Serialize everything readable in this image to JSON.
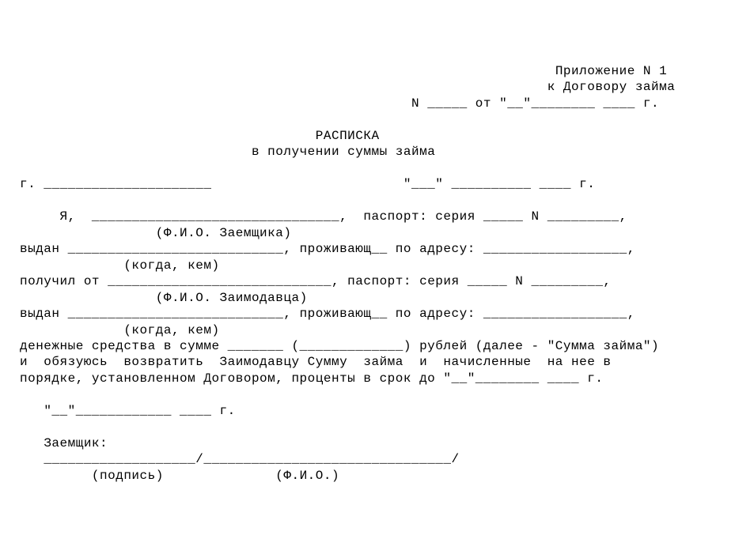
{
  "header": {
    "appendix": "Приложение N 1",
    "to_contract": "к Договору займа",
    "contract_ref": "N _____ от \"__\"________ ____ г."
  },
  "title": {
    "line1": "РАСПИСКА",
    "line2": "в получении суммы займа"
  },
  "place_date": {
    "prefix_g": "г.",
    "suffix": "\"___\" __________ ____ г."
  },
  "body": {
    "i": "Я,",
    "passport": "паспорт: серия _____ N _________,",
    "borrower_hint": "(Ф.И.О. Заемщика)",
    "issued": "выдан",
    "living_at": "проживающ__ по адресу:",
    "when_by": "(когда, кем)",
    "received_from": "получил от",
    "lender_hint": "(Ф.И.О. Заимодавца)",
    "sum_line": "денежные средства в сумме _______ (_____________) рублей (далее - \"Сумма займа\")",
    "obligation1": "и  обязуюсь  возвратить  Заимодавцу Сумму  займа  и  начисленные  на нее в",
    "obligation2": "порядке, установленном Договором, проценты в срок до \"__\"________ ____ г."
  },
  "footer": {
    "date": "\"__\"____________ ____ г.",
    "borrower_label": "Заемщик:",
    "sign_line": "___________________/_______________________________/",
    "sign_hint": "(подпись)              (Ф.И.О.)"
  },
  "style": {
    "font": "Courier New",
    "fontsize_pt": 12,
    "text_color": "#000000",
    "background": "#ffffff"
  }
}
